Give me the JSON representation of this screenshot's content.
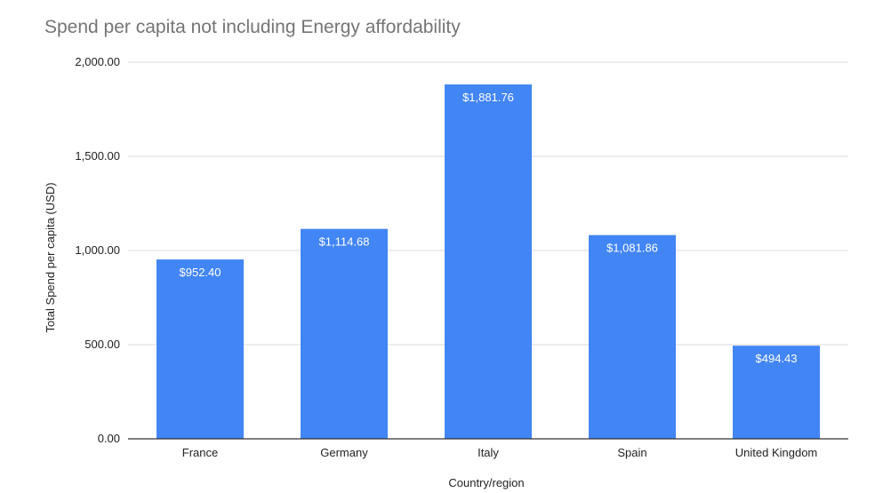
{
  "chart_data": {
    "type": "bar",
    "title": "Spend per capita not including Energy affordability",
    "xlabel": "Country/region",
    "ylabel": "Total Spend per capita (USD)",
    "categories": [
      "France",
      "Germany",
      "Italy",
      "Spain",
      "United Kingdom"
    ],
    "values": [
      952.4,
      1114.68,
      1881.76,
      1081.86,
      494.43
    ],
    "data_labels": [
      "$952.40",
      "$1,114.68",
      "$1,881.76",
      "$1,081.86",
      "$494.43"
    ],
    "y_ticks": [
      0,
      500,
      1000,
      1500,
      2000
    ],
    "y_tick_labels": [
      "0.00",
      "500.00",
      "1,000.00",
      "1,500.00",
      "2,000.00"
    ],
    "ylim": [
      0,
      2000
    ],
    "grid": true,
    "legend": "none",
    "colors": {
      "bar": "#4285f4",
      "title": "#757575",
      "text": "#222222",
      "grid": "#d9d9d9",
      "axis": "#333333",
      "data_label": "#ffffff"
    }
  }
}
